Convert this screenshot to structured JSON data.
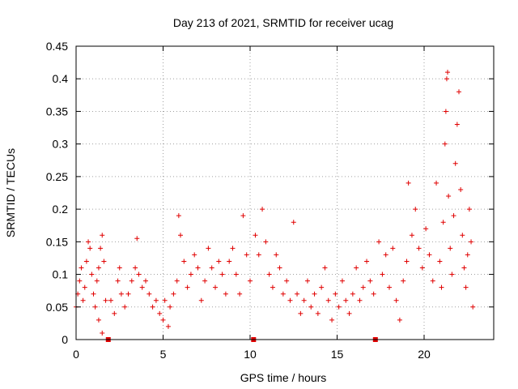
{
  "chart_data": {
    "type": "scatter",
    "title": "Day 213 of 2021, SRMTID for receiver ucag",
    "xlabel": "GPS time / hours",
    "ylabel": "SRMTID / TECUs",
    "xlim": [
      0,
      24
    ],
    "ylim": [
      0,
      0.45
    ],
    "grid": true,
    "marker": "plus",
    "color": "#e00000",
    "x_ticks": [
      0,
      5,
      10,
      15,
      20
    ],
    "x_tick_labels": [
      "0",
      "5",
      "10",
      "15",
      "20"
    ],
    "y_ticks": [
      0,
      0.05,
      0.1,
      0.15,
      0.2,
      0.25,
      0.3,
      0.35,
      0.4,
      0.45
    ],
    "y_tick_labels": [
      "0",
      "0.05",
      "0.1",
      "0.15",
      "0.2",
      "0.25",
      "0.3",
      "0.35",
      "0.4",
      "0.45"
    ],
    "zero_markers_x": [
      1.85,
      10.2,
      17.2
    ],
    "series": [
      {
        "name": "SRMTID",
        "points": [
          [
            0.0,
            0.05
          ],
          [
            0.1,
            0.07
          ],
          [
            0.2,
            0.09
          ],
          [
            0.3,
            0.11
          ],
          [
            0.4,
            0.06
          ],
          [
            0.5,
            0.08
          ],
          [
            0.6,
            0.12
          ],
          [
            0.7,
            0.15
          ],
          [
            0.8,
            0.14
          ],
          [
            0.9,
            0.1
          ],
          [
            1.0,
            0.07
          ],
          [
            1.1,
            0.05
          ],
          [
            1.2,
            0.09
          ],
          [
            1.3,
            0.11
          ],
          [
            1.4,
            0.14
          ],
          [
            1.5,
            0.16
          ],
          [
            1.6,
            0.12
          ],
          [
            1.7,
            0.06
          ],
          [
            1.5,
            0.01
          ],
          [
            1.3,
            0.03
          ],
          [
            2.0,
            0.06
          ],
          [
            2.2,
            0.04
          ],
          [
            2.4,
            0.09
          ],
          [
            2.5,
            0.11
          ],
          [
            2.6,
            0.07
          ],
          [
            2.8,
            0.05
          ],
          [
            3.0,
            0.07
          ],
          [
            3.2,
            0.09
          ],
          [
            3.4,
            0.11
          ],
          [
            3.5,
            0.155
          ],
          [
            3.6,
            0.1
          ],
          [
            3.8,
            0.08
          ],
          [
            4.0,
            0.09
          ],
          [
            4.2,
            0.07
          ],
          [
            4.4,
            0.05
          ],
          [
            4.6,
            0.06
          ],
          [
            4.8,
            0.04
          ],
          [
            5.0,
            0.03
          ],
          [
            5.1,
            0.06
          ],
          [
            5.3,
            0.02
          ],
          [
            5.4,
            0.05
          ],
          [
            5.6,
            0.07
          ],
          [
            5.8,
            0.09
          ],
          [
            5.9,
            0.19
          ],
          [
            6.0,
            0.16
          ],
          [
            6.2,
            0.12
          ],
          [
            6.4,
            0.08
          ],
          [
            6.6,
            0.1
          ],
          [
            6.8,
            0.13
          ],
          [
            7.0,
            0.11
          ],
          [
            7.2,
            0.06
          ],
          [
            7.4,
            0.09
          ],
          [
            7.6,
            0.14
          ],
          [
            7.8,
            0.11
          ],
          [
            8.0,
            0.08
          ],
          [
            8.2,
            0.12
          ],
          [
            8.4,
            0.1
          ],
          [
            8.6,
            0.07
          ],
          [
            8.8,
            0.12
          ],
          [
            9.0,
            0.14
          ],
          [
            9.2,
            0.1
          ],
          [
            9.4,
            0.07
          ],
          [
            9.6,
            0.19
          ],
          [
            9.8,
            0.13
          ],
          [
            10.0,
            0.09
          ],
          [
            10.3,
            0.16
          ],
          [
            10.5,
            0.13
          ],
          [
            10.7,
            0.2
          ],
          [
            10.9,
            0.15
          ],
          [
            11.1,
            0.1
          ],
          [
            11.3,
            0.08
          ],
          [
            11.5,
            0.13
          ],
          [
            11.7,
            0.11
          ],
          [
            11.9,
            0.07
          ],
          [
            12.1,
            0.09
          ],
          [
            12.3,
            0.06
          ],
          [
            12.5,
            0.18
          ],
          [
            12.7,
            0.07
          ],
          [
            12.9,
            0.04
          ],
          [
            13.1,
            0.06
          ],
          [
            13.3,
            0.09
          ],
          [
            13.5,
            0.05
          ],
          [
            13.7,
            0.07
          ],
          [
            13.9,
            0.04
          ],
          [
            14.1,
            0.08
          ],
          [
            14.3,
            0.11
          ],
          [
            14.5,
            0.06
          ],
          [
            14.7,
            0.03
          ],
          [
            14.9,
            0.07
          ],
          [
            15.1,
            0.05
          ],
          [
            15.3,
            0.09
          ],
          [
            15.5,
            0.06
          ],
          [
            15.7,
            0.04
          ],
          [
            15.9,
            0.07
          ],
          [
            16.1,
            0.11
          ],
          [
            16.3,
            0.06
          ],
          [
            16.5,
            0.08
          ],
          [
            16.7,
            0.12
          ],
          [
            16.9,
            0.09
          ],
          [
            17.1,
            0.07
          ],
          [
            17.4,
            0.15
          ],
          [
            17.6,
            0.1
          ],
          [
            17.8,
            0.13
          ],
          [
            18.0,
            0.08
          ],
          [
            18.2,
            0.14
          ],
          [
            18.4,
            0.06
          ],
          [
            18.6,
            0.03
          ],
          [
            18.8,
            0.09
          ],
          [
            19.0,
            0.12
          ],
          [
            19.1,
            0.24
          ],
          [
            19.3,
            0.16
          ],
          [
            19.5,
            0.2
          ],
          [
            19.7,
            0.14
          ],
          [
            19.9,
            0.11
          ],
          [
            20.1,
            0.17
          ],
          [
            20.3,
            0.13
          ],
          [
            20.5,
            0.09
          ],
          [
            20.7,
            0.24
          ],
          [
            20.9,
            0.12
          ],
          [
            21.0,
            0.08
          ],
          [
            21.1,
            0.18
          ],
          [
            21.2,
            0.3
          ],
          [
            21.25,
            0.35
          ],
          [
            21.3,
            0.4
          ],
          [
            21.35,
            0.41
          ],
          [
            21.4,
            0.22
          ],
          [
            21.5,
            0.14
          ],
          [
            21.6,
            0.1
          ],
          [
            21.7,
            0.19
          ],
          [
            21.8,
            0.27
          ],
          [
            21.9,
            0.33
          ],
          [
            22.0,
            0.38
          ],
          [
            22.1,
            0.23
          ],
          [
            22.2,
            0.16
          ],
          [
            22.3,
            0.11
          ],
          [
            22.4,
            0.08
          ],
          [
            22.5,
            0.13
          ],
          [
            22.6,
            0.2
          ],
          [
            22.7,
            0.15
          ],
          [
            22.8,
            0.05
          ]
        ]
      }
    ]
  }
}
